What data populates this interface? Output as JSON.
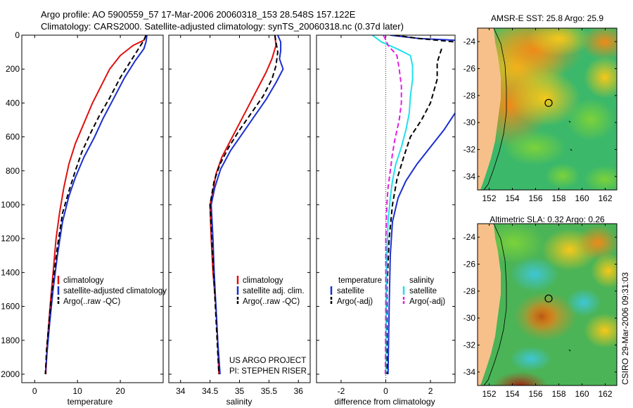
{
  "header": {
    "line1": "Argo profile: AO 5900559_57 17-Mar-2006 20060318_153 28.548S 157.122E",
    "line2": "Climatology: CARS2000. Satellite-adjusted climatology: synTS_20060318.nc (0.37d later)"
  },
  "colors": {
    "climatology": "#e01010",
    "satellite": "#1a2fd0",
    "argo": "#000000",
    "sat_salinity": "#20e0ee",
    "argo_adj_salinity": "#e020e0"
  },
  "chart_data": [
    {
      "type": "line",
      "name": "temperature",
      "xlabel": "temperature",
      "xlim": [
        -3,
        30
      ],
      "ylim": [
        2050,
        0
      ],
      "xticks": [
        "0",
        "10",
        "20"
      ],
      "xtick_values": [
        0,
        10,
        20
      ],
      "yticks": [
        "0",
        "200",
        "400",
        "600",
        "800",
        "1000",
        "1200",
        "1400",
        "1600",
        "1800",
        "2000"
      ],
      "ytick_values": [
        0,
        200,
        400,
        600,
        800,
        1000,
        1200,
        1400,
        1600,
        1800,
        2000
      ],
      "legend": [
        "climatology",
        "satellite-adjusted climatology",
        "Argo(..raw -QC)"
      ],
      "series": [
        {
          "name": "climatology",
          "style": "solid",
          "color_key": "climatology",
          "points": [
            [
              26,
              0
            ],
            [
              25.5,
              30
            ],
            [
              23,
              60
            ],
            [
              20,
              120
            ],
            [
              17.5,
              200
            ],
            [
              15.5,
              300
            ],
            [
              13.5,
              400
            ],
            [
              11.5,
              520
            ],
            [
              9.5,
              640
            ],
            [
              8,
              760
            ],
            [
              6.8,
              900
            ],
            [
              5.8,
              1050
            ],
            [
              5,
              1200
            ],
            [
              4.3,
              1400
            ],
            [
              3.6,
              1600
            ],
            [
              3,
              1800
            ],
            [
              2.6,
              2000
            ]
          ]
        },
        {
          "name": "satellite-adjusted climatology",
          "style": "solid",
          "color_key": "satellite",
          "points": [
            [
              26.2,
              0
            ],
            [
              26,
              40
            ],
            [
              25.5,
              80
            ],
            [
              23.5,
              150
            ],
            [
              21,
              250
            ],
            [
              18.5,
              370
            ],
            [
              16,
              490
            ],
            [
              14,
              600
            ],
            [
              11.5,
              720
            ],
            [
              9.5,
              840
            ],
            [
              8,
              950
            ],
            [
              6.5,
              1100
            ],
            [
              5.3,
              1300
            ],
            [
              4.3,
              1500
            ],
            [
              3.5,
              1700
            ],
            [
              2.8,
              1900
            ],
            [
              2.5,
              2000
            ]
          ]
        },
        {
          "name": "Argo(..raw -QC)",
          "style": "dash",
          "color_key": "argo",
          "points": [
            [
              26,
              0
            ],
            [
              25.5,
              30
            ],
            [
              24.5,
              70
            ],
            [
              22.5,
              150
            ],
            [
              20,
              250
            ],
            [
              17.5,
              370
            ],
            [
              15,
              480
            ],
            [
              13,
              580
            ],
            [
              11,
              690
            ],
            [
              9.5,
              800
            ],
            [
              8,
              920
            ],
            [
              6.5,
              1050
            ],
            [
              5.3,
              1250
            ],
            [
              4.3,
              1450
            ],
            [
              3.5,
              1650
            ],
            [
              2.8,
              1850
            ],
            [
              2.5,
              2000
            ]
          ]
        }
      ]
    },
    {
      "type": "line",
      "name": "salinity",
      "xlabel": "salinity",
      "xlim": [
        33.8,
        36.2
      ],
      "ylim": [
        2050,
        0
      ],
      "xticks": [
        "34",
        "34.5",
        "35",
        "35.5",
        "36"
      ],
      "xtick_values": [
        34,
        34.5,
        35,
        35.5,
        36
      ],
      "legend": [
        "climatology",
        "satellite adj. clim.",
        "Argo(..raw -QC)"
      ],
      "annotations": [
        "US ARGO PROJECT",
        "PI: STEPHEN RISER"
      ],
      "series": [
        {
          "name": "climatology",
          "style": "solid",
          "color_key": "climatology",
          "points": [
            [
              35.6,
              0
            ],
            [
              35.62,
              60
            ],
            [
              35.55,
              140
            ],
            [
              35.45,
              220
            ],
            [
              35.3,
              320
            ],
            [
              35.15,
              420
            ],
            [
              35,
              520
            ],
            [
              34.85,
              620
            ],
            [
              34.7,
              720
            ],
            [
              34.6,
              820
            ],
            [
              34.55,
              920
            ],
            [
              34.5,
              1000
            ],
            [
              34.52,
              1200
            ],
            [
              34.55,
              1400
            ],
            [
              34.6,
              1600
            ],
            [
              34.63,
              1800
            ],
            [
              34.65,
              2000
            ]
          ]
        },
        {
          "name": "satellite adj. clim.",
          "style": "solid",
          "color_key": "satellite",
          "points": [
            [
              35.65,
              0
            ],
            [
              35.7,
              40
            ],
            [
              35.7,
              90
            ],
            [
              35.68,
              140
            ],
            [
              35.74,
              200
            ],
            [
              35.62,
              280
            ],
            [
              35.45,
              380
            ],
            [
              35.25,
              480
            ],
            [
              35.05,
              580
            ],
            [
              34.85,
              680
            ],
            [
              34.68,
              790
            ],
            [
              34.58,
              900
            ],
            [
              34.52,
              1000
            ],
            [
              34.55,
              1200
            ],
            [
              34.57,
              1400
            ],
            [
              34.6,
              1600
            ],
            [
              34.63,
              1800
            ],
            [
              34.67,
              2000
            ]
          ]
        },
        {
          "name": "Argo(..raw -QC)",
          "style": "dash",
          "color_key": "argo",
          "points": [
            [
              35.6,
              0
            ],
            [
              35.62,
              40
            ],
            [
              35.65,
              100
            ],
            [
              35.62,
              180
            ],
            [
              35.55,
              260
            ],
            [
              35.4,
              360
            ],
            [
              35.2,
              460
            ],
            [
              35,
              560
            ],
            [
              34.82,
              660
            ],
            [
              34.67,
              760
            ],
            [
              34.57,
              860
            ],
            [
              34.52,
              960
            ],
            [
              34.5,
              1000
            ],
            [
              34.53,
              1200
            ],
            [
              34.56,
              1400
            ],
            [
              34.59,
              1600
            ],
            [
              34.62,
              1800
            ],
            [
              34.65,
              2000
            ]
          ]
        }
      ]
    },
    {
      "type": "line",
      "name": "difference",
      "xlabel": "difference from climatology",
      "xlim": [
        -3.1,
        3.1
      ],
      "ylim": [
        2050,
        0
      ],
      "xticks": [
        "-2",
        "0",
        "2"
      ],
      "xtick_values": [
        -2,
        0,
        2
      ],
      "legend_temperature_title": "temperature",
      "legend_salinity_title": "salinity",
      "legend": [
        "satellite",
        "Argo(-adj)",
        "satellite",
        "Argo(-adj)"
      ],
      "series": [
        {
          "name": "temperature satellite",
          "style": "solid",
          "color_key": "satellite",
          "points": [
            [
              0.2,
              0
            ],
            [
              1.5,
              20
            ],
            [
              3.1,
              30
            ]
          ]
        },
        {
          "name": "temperature satellite lower",
          "style": "solid",
          "color_key": "satellite",
          "points": [
            [
              3.1,
              460
            ],
            [
              2.6,
              560
            ],
            [
              2,
              660
            ],
            [
              1.4,
              760
            ],
            [
              0.9,
              860
            ],
            [
              0.55,
              960
            ],
            [
              0.3,
              1100
            ],
            [
              0.2,
              1300
            ],
            [
              0.15,
              1600
            ],
            [
              0.1,
              2000
            ]
          ]
        },
        {
          "name": "temperature Argo(-adj)",
          "style": "dash",
          "color_key": "argo",
          "points": [
            [
              0.4,
              0
            ],
            [
              1.5,
              20
            ],
            [
              3.1,
              40
            ]
          ]
        },
        {
          "name": "temperature Argo(-adj) lower",
          "style": "dash",
          "color_key": "argo",
          "points": [
            [
              2.5,
              80
            ],
            [
              2.3,
              160
            ],
            [
              2.3,
              260
            ],
            [
              2,
              400
            ],
            [
              1.6,
              500
            ],
            [
              1.1,
              600
            ],
            [
              0.8,
              720
            ],
            [
              0.5,
              850
            ],
            [
              0.3,
              1000
            ],
            [
              0.15,
              1200
            ],
            [
              0.05,
              1500
            ],
            [
              0.05,
              2000
            ]
          ]
        },
        {
          "name": "salinity satellite",
          "style": "solid",
          "color_key": "sat_salinity",
          "points": [
            [
              -0.6,
              0
            ],
            [
              -0.2,
              40
            ],
            [
              0.5,
              80
            ],
            [
              1.1,
              120
            ],
            [
              1.2,
              180
            ],
            [
              1.2,
              260
            ],
            [
              1.1,
              360
            ],
            [
              1.05,
              460
            ],
            [
              0.9,
              560
            ],
            [
              0.7,
              660
            ],
            [
              0.45,
              760
            ],
            [
              0.3,
              860
            ],
            [
              0.2,
              960
            ],
            [
              0.1,
              1100
            ],
            [
              0.05,
              1300
            ],
            [
              0.02,
              1600
            ],
            [
              0,
              2000
            ]
          ]
        },
        {
          "name": "salinity Argo(-adj)",
          "style": "dash",
          "color_key": "argo_adj_salinity",
          "points": [
            [
              -0.1,
              0
            ],
            [
              0.1,
              60
            ],
            [
              0.5,
              120
            ],
            [
              0.6,
              200
            ],
            [
              0.7,
              300
            ],
            [
              0.7,
              400
            ],
            [
              0.6,
              500
            ],
            [
              0.5,
              560
            ],
            [
              0.4,
              620
            ],
            [
              0.3,
              700
            ],
            [
              0.2,
              800
            ],
            [
              0.1,
              900
            ],
            [
              0.05,
              1000
            ],
            [
              0,
              1200
            ],
            [
              0,
              1600
            ],
            [
              -0.02,
              2000
            ]
          ]
        }
      ]
    }
  ],
  "maps": [
    {
      "title": "AMSR-E SST: 25.8 Argo: 25.9",
      "xticks": [
        "152",
        "154",
        "156",
        "158",
        "160",
        "162"
      ],
      "yticks": [
        "-24",
        "-26",
        "-28",
        "-30",
        "-32",
        "-34"
      ],
      "lon_range": [
        151,
        163
      ],
      "lat_range": [
        -35,
        -23
      ],
      "argo_lon": 157.122,
      "argo_lat": -28.548
    },
    {
      "title": "Altimetric SLA: 0.32 Argo: 0.26",
      "xticks": [
        "152",
        "154",
        "156",
        "158",
        "160",
        "162"
      ],
      "yticks": [
        "-24",
        "-26",
        "-28",
        "-30",
        "-32",
        "-34"
      ],
      "lon_range": [
        151,
        163
      ],
      "lat_range": [
        -35,
        -23
      ],
      "argo_lon": 157.122,
      "argo_lat": -28.548
    }
  ],
  "side_label": "CSIRO 29-Mar-2006 09:31:03"
}
